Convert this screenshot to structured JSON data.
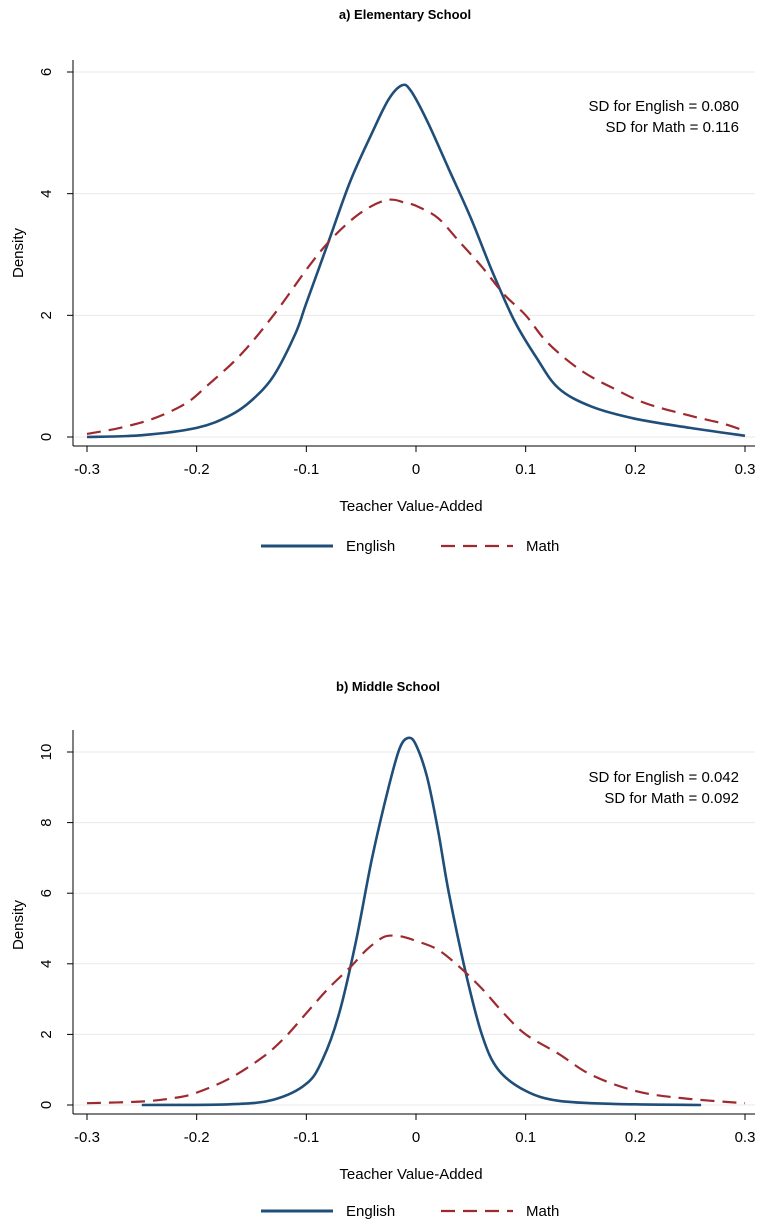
{
  "chart_data": [
    {
      "type": "line",
      "title": "a) Elementary School",
      "xlabel": "Teacher Value-Added",
      "ylabel": "Density",
      "xlim": [
        -0.3,
        0.3
      ],
      "ylim": [
        0,
        6
      ],
      "xticks": [
        -0.3,
        -0.2,
        -0.1,
        0,
        0.1,
        0.2,
        0.3
      ],
      "xtick_labels": [
        "-0.3",
        "-0.2",
        "-0.1",
        "0",
        "0.1",
        "0.2",
        "0.3"
      ],
      "yticks": [
        0,
        2,
        4,
        6
      ],
      "ytick_labels": [
        "0",
        "2",
        "4",
        "6"
      ],
      "grid": true,
      "legend_position": "bottom",
      "annotations": [
        "SD for English = 0.080",
        "SD for Math = 0.116"
      ],
      "series": [
        {
          "name": "English",
          "color": "#1f4e79",
          "dash": "solid",
          "points": [
            [
              -0.3,
              0.0
            ],
            [
              -0.25,
              0.03
            ],
            [
              -0.2,
              0.15
            ],
            [
              -0.17,
              0.35
            ],
            [
              -0.15,
              0.6
            ],
            [
              -0.13,
              1.0
            ],
            [
              -0.11,
              1.7
            ],
            [
              -0.1,
              2.2
            ],
            [
              -0.08,
              3.2
            ],
            [
              -0.06,
              4.2
            ],
            [
              -0.04,
              5.0
            ],
            [
              -0.025,
              5.55
            ],
            [
              -0.013,
              5.78
            ],
            [
              -0.005,
              5.7
            ],
            [
              0.01,
              5.2
            ],
            [
              0.03,
              4.4
            ],
            [
              0.05,
              3.6
            ],
            [
              0.07,
              2.7
            ],
            [
              0.09,
              1.9
            ],
            [
              0.11,
              1.3
            ],
            [
              0.13,
              0.8
            ],
            [
              0.16,
              0.5
            ],
            [
              0.2,
              0.3
            ],
            [
              0.25,
              0.15
            ],
            [
              0.3,
              0.02
            ]
          ]
        },
        {
          "name": "Math",
          "color": "#9e2a2f",
          "dash": "dashed",
          "points": [
            [
              -0.3,
              0.05
            ],
            [
              -0.27,
              0.15
            ],
            [
              -0.24,
              0.3
            ],
            [
              -0.21,
              0.55
            ],
            [
              -0.19,
              0.85
            ],
            [
              -0.16,
              1.35
            ],
            [
              -0.13,
              2.0
            ],
            [
              -0.1,
              2.75
            ],
            [
              -0.08,
              3.2
            ],
            [
              -0.06,
              3.55
            ],
            [
              -0.045,
              3.75
            ],
            [
              -0.03,
              3.88
            ],
            [
              -0.02,
              3.9
            ],
            [
              -0.01,
              3.85
            ],
            [
              0.0,
              3.8
            ],
            [
              0.02,
              3.6
            ],
            [
              0.04,
              3.2
            ],
            [
              0.06,
              2.8
            ],
            [
              0.08,
              2.35
            ],
            [
              0.1,
              2.0
            ],
            [
              0.12,
              1.55
            ],
            [
              0.15,
              1.1
            ],
            [
              0.18,
              0.8
            ],
            [
              0.21,
              0.55
            ],
            [
              0.25,
              0.35
            ],
            [
              0.28,
              0.22
            ],
            [
              0.3,
              0.1
            ]
          ]
        }
      ]
    },
    {
      "type": "line",
      "title": "b) Middle School",
      "xlabel": "Teacher Value-Added",
      "ylabel": "Density",
      "xlim": [
        -0.3,
        0.3
      ],
      "ylim": [
        0,
        10
      ],
      "xticks": [
        -0.3,
        -0.2,
        -0.1,
        0,
        0.1,
        0.2,
        0.3
      ],
      "xtick_labels": [
        "-0.3",
        "-0.2",
        "-0.1",
        "0",
        "0.1",
        "0.2",
        "0.3"
      ],
      "yticks": [
        0,
        2,
        4,
        6,
        8,
        10
      ],
      "ytick_labels": [
        "0",
        "2",
        "4",
        "6",
        "8",
        "10"
      ],
      "grid": true,
      "legend_position": "bottom",
      "annotations": [
        "SD for English = 0.042",
        "SD for Math = 0.092"
      ],
      "series": [
        {
          "name": "English",
          "color": "#1f4e79",
          "dash": "solid",
          "points": [
            [
              -0.25,
              0.0
            ],
            [
              -0.17,
              0.02
            ],
            [
              -0.13,
              0.15
            ],
            [
              -0.1,
              0.6
            ],
            [
              -0.085,
              1.3
            ],
            [
              -0.07,
              2.6
            ],
            [
              -0.055,
              4.6
            ],
            [
              -0.04,
              7.0
            ],
            [
              -0.025,
              9.0
            ],
            [
              -0.015,
              10.1
            ],
            [
              -0.007,
              10.4
            ],
            [
              0.0,
              10.2
            ],
            [
              0.01,
              9.3
            ],
            [
              0.02,
              7.8
            ],
            [
              0.03,
              6.0
            ],
            [
              0.045,
              3.8
            ],
            [
              0.06,
              2.0
            ],
            [
              0.075,
              1.0
            ],
            [
              0.1,
              0.4
            ],
            [
              0.13,
              0.12
            ],
            [
              0.18,
              0.03
            ],
            [
              0.26,
              0.0
            ]
          ]
        },
        {
          "name": "Math",
          "color": "#9e2a2f",
          "dash": "dashed",
          "points": [
            [
              -0.3,
              0.05
            ],
            [
              -0.25,
              0.1
            ],
            [
              -0.22,
              0.2
            ],
            [
              -0.2,
              0.35
            ],
            [
              -0.17,
              0.75
            ],
            [
              -0.14,
              1.35
            ],
            [
              -0.12,
              1.9
            ],
            [
              -0.1,
              2.6
            ],
            [
              -0.08,
              3.3
            ],
            [
              -0.06,
              3.9
            ],
            [
              -0.045,
              4.4
            ],
            [
              -0.03,
              4.75
            ],
            [
              -0.02,
              4.8
            ],
            [
              -0.01,
              4.75
            ],
            [
              0.0,
              4.65
            ],
            [
              0.02,
              4.4
            ],
            [
              0.04,
              3.9
            ],
            [
              0.06,
              3.3
            ],
            [
              0.08,
              2.6
            ],
            [
              0.1,
              2.0
            ],
            [
              0.13,
              1.45
            ],
            [
              0.16,
              0.85
            ],
            [
              0.2,
              0.4
            ],
            [
              0.24,
              0.2
            ],
            [
              0.3,
              0.05
            ]
          ]
        }
      ]
    }
  ]
}
